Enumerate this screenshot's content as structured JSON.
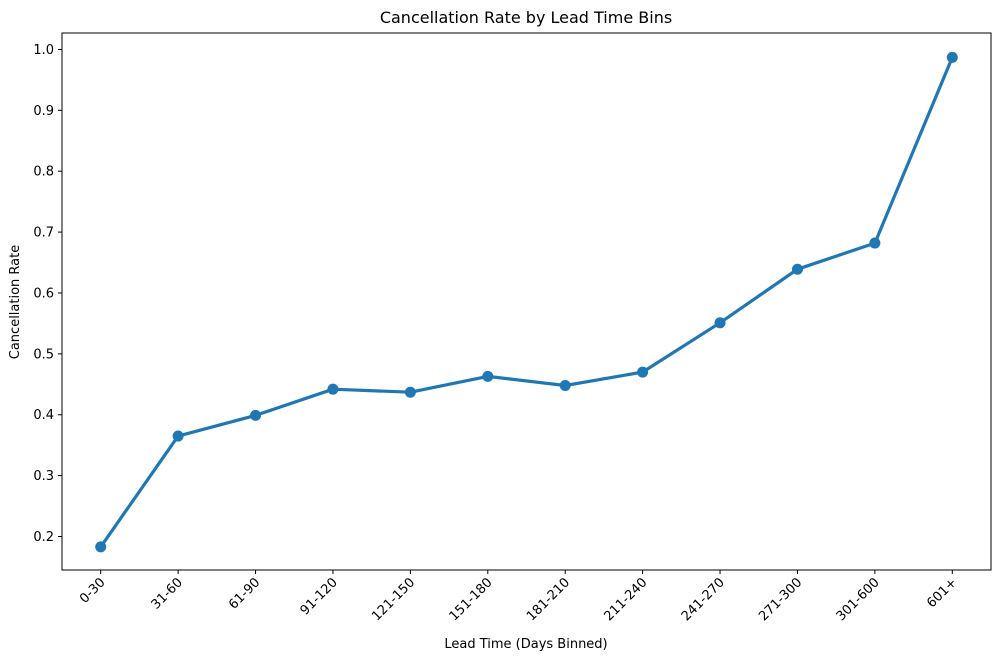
{
  "chart_data": {
    "type": "line",
    "title": "Cancellation Rate by Lead Time Bins",
    "xlabel": "Lead Time (Days Binned)",
    "ylabel": "Cancellation Rate",
    "categories": [
      "0-30",
      "31-60",
      "61-90",
      "91-120",
      "121-150",
      "151-180",
      "181-210",
      "211-240",
      "241-270",
      "271-300",
      "301-600",
      "601+"
    ],
    "values": [
      0.183,
      0.365,
      0.399,
      0.442,
      0.437,
      0.463,
      0.448,
      0.47,
      0.551,
      0.639,
      0.682,
      0.987
    ],
    "ylim": [
      0.145,
      1.027
    ],
    "yticks": [
      0.2,
      0.3,
      0.4,
      0.5,
      0.6,
      0.7,
      0.8,
      0.9,
      1.0
    ],
    "ytick_labels": [
      "0.2",
      "0.3",
      "0.4",
      "0.5",
      "0.6",
      "0.7",
      "0.8",
      "0.9",
      "1.0"
    ],
    "grid": false,
    "legend": "none",
    "color": "#1f77b4"
  }
}
